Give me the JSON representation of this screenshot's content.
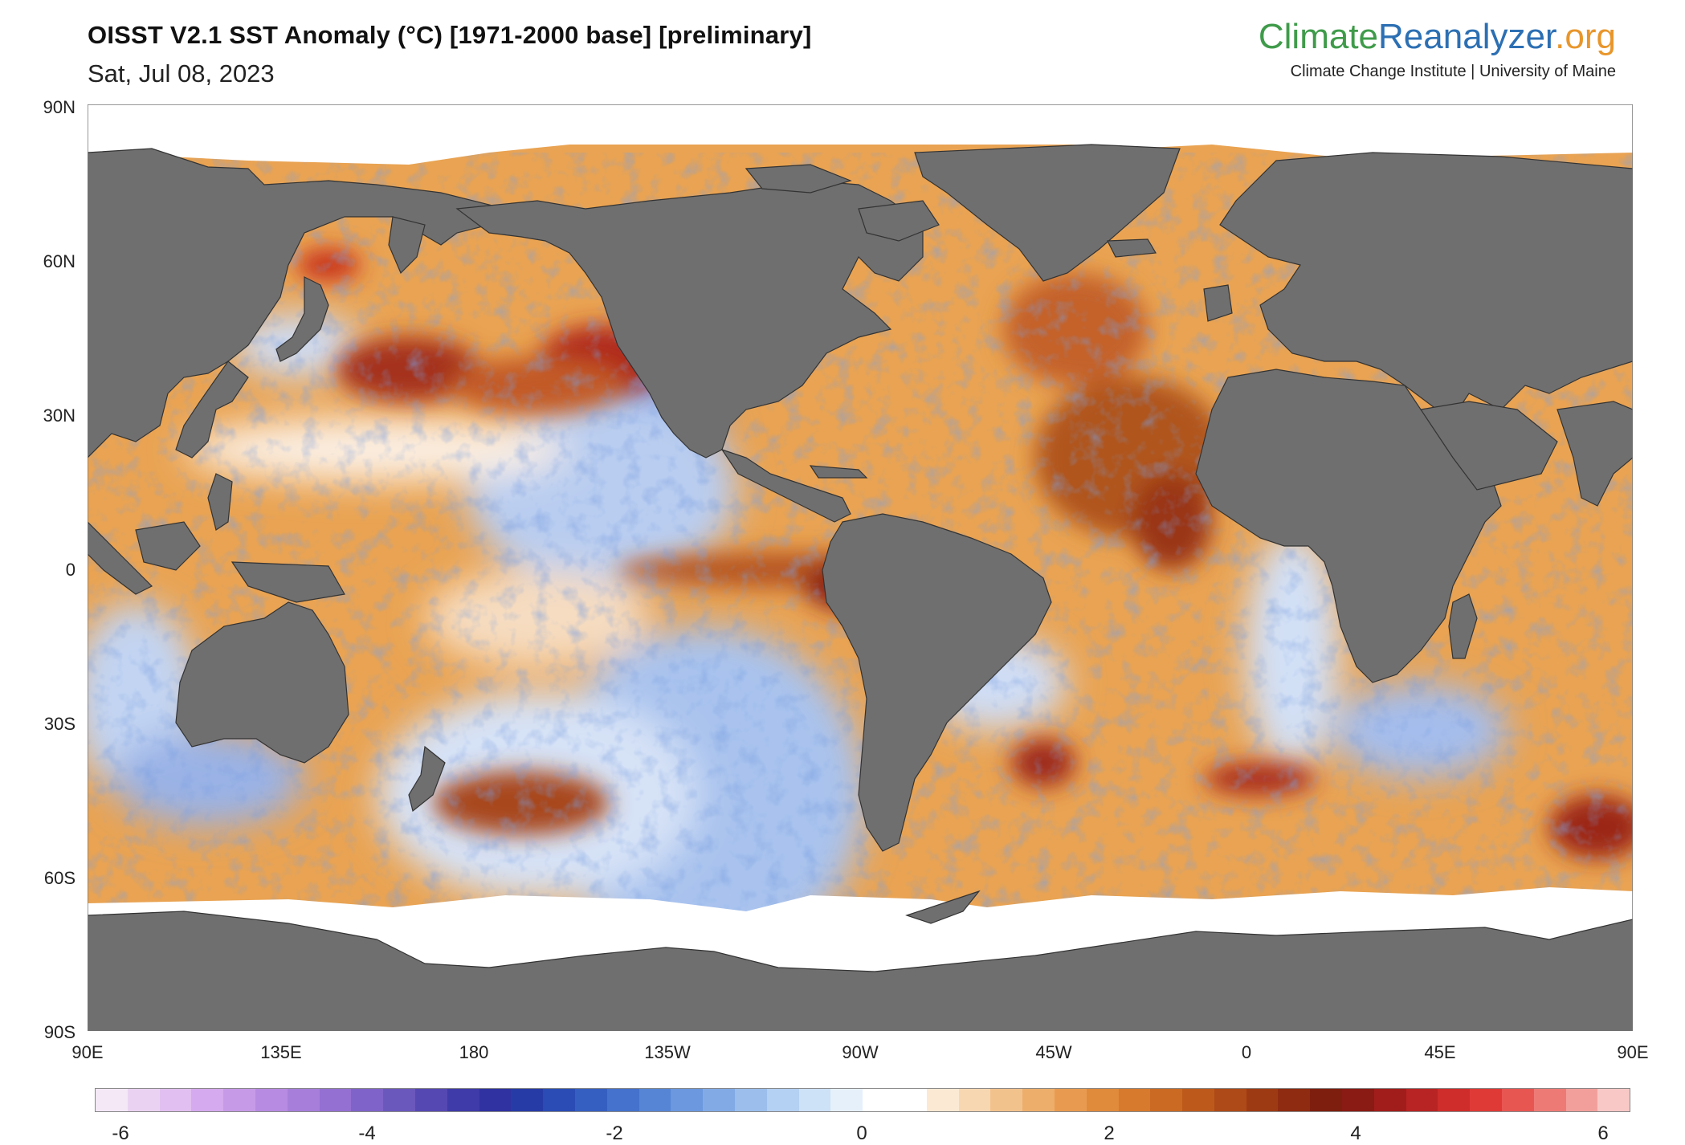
{
  "header": {
    "title": "OISST V2.1 SST Anomaly (°C) [1971-2000 base] [preliminary]",
    "date": "Sat, Jul 08, 2023"
  },
  "brand": {
    "part1": "Climate",
    "part2": "Reanalyzer",
    "part3": ".org",
    "subtitle": "Climate Change Institute | University of Maine"
  },
  "axes": {
    "lat_labels": [
      "90N",
      "60N",
      "30N",
      "0",
      "30S",
      "60S",
      "90S"
    ],
    "lon_labels": [
      "90E",
      "135E",
      "180",
      "135W",
      "90W",
      "45W",
      "0",
      "45E",
      "90E"
    ]
  },
  "colorbar": {
    "labels": [
      "-6",
      "-4",
      "-2",
      "0",
      "2",
      "4",
      "6"
    ],
    "colors": [
      "#f4e8f7",
      "#ead3f2",
      "#e1bff0",
      "#d5aaee",
      "#c79ae8",
      "#b88be2",
      "#a77fdb",
      "#9570d3",
      "#8063c9",
      "#6b58bd",
      "#5548b3",
      "#3f3ba8",
      "#2f32a0",
      "#273ba6",
      "#2a4cb4",
      "#355fc1",
      "#4472cc",
      "#5685d6",
      "#6b98de",
      "#82abe6",
      "#9bbeec",
      "#b4d0f2",
      "#cde1f7",
      "#e6f0fb",
      "#ffffff",
      "#ffffff",
      "#fbe9d4",
      "#f7d7b2",
      "#f2c28d",
      "#edae6b",
      "#e89b50",
      "#e08a3c",
      "#d77a2d",
      "#cb6a22",
      "#bd5a1b",
      "#ae4a17",
      "#9e3a13",
      "#8e2b10",
      "#7e1e0e",
      "#8a1a14",
      "#a11d1b",
      "#b82423",
      "#ce2d2b",
      "#df3a36",
      "#e85652",
      "#ee7a76",
      "#f29f9c",
      "#f7c8c6"
    ]
  },
  "colors": {
    "land": "#6f6f6f",
    "ice": "#ffffff",
    "warm": "#e4973f",
    "hot": "#a8281a",
    "cool": "#9dbbe6",
    "cold": "#3d57c4"
  }
}
